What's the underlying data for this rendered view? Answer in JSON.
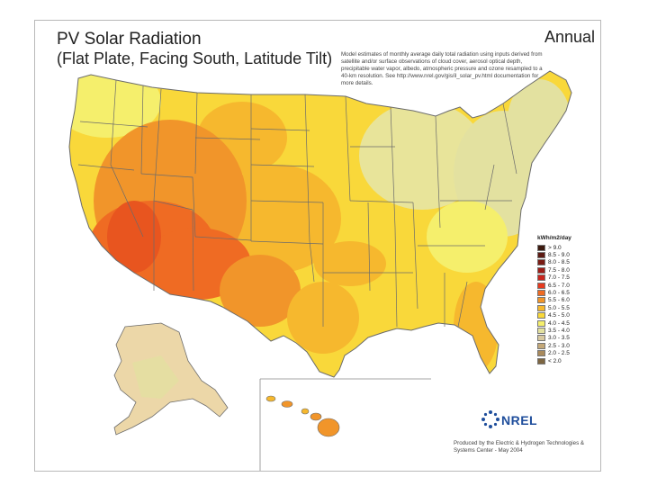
{
  "header": {
    "title_line1": "PV Solar Radiation",
    "title_line2": "(Flat Plate, Facing South, Latitude Tilt)",
    "period": "Annual"
  },
  "description": "Model estimates of monthly average daily total radiation using inputs derived from satellite and/or surface observations of cloud cover, aerosol optical depth, precipitable water vapor, albedo, atmospheric pressure and ozone resampled to a 40-km resolution. See http://www.nrel.gov/gis/il_solar_pv.html documentation for more details.",
  "legend": {
    "title": "kWh/m2/day",
    "items": [
      {
        "label": "> 9.0",
        "color": "#3d1a0f"
      },
      {
        "label": "8.5 - 9.0",
        "color": "#5c1a12"
      },
      {
        "label": "8.0 - 8.5",
        "color": "#7a1c14"
      },
      {
        "label": "7.5 - 8.0",
        "color": "#9e1e18"
      },
      {
        "label": "7.0 - 7.5",
        "color": "#c9261e"
      },
      {
        "label": "6.5 - 7.0",
        "color": "#e63a1f"
      },
      {
        "label": "6.0 - 6.5",
        "color": "#ef6b23"
      },
      {
        "label": "5.5 - 6.0",
        "color": "#f1952a"
      },
      {
        "label": "5.0 - 5.5",
        "color": "#f6b82e"
      },
      {
        "label": "4.5 - 5.0",
        "color": "#f9d83a"
      },
      {
        "label": "4.0 - 4.5",
        "color": "#f5ef6c"
      },
      {
        "label": "3.5 - 4.0",
        "color": "#e3e1a0"
      },
      {
        "label": "3.0 - 3.5",
        "color": "#d8c9a0"
      },
      {
        "label": "2.5 - 3.0",
        "color": "#c4a878"
      },
      {
        "label": "2.0 - 2.5",
        "color": "#a98a5c"
      },
      {
        "label": "< 2.0",
        "color": "#7d6642"
      }
    ]
  },
  "logo": {
    "text": "NREL"
  },
  "credit": "Produced by the Electric & Hydrogen Technologies & Systems Center - May 2004"
}
